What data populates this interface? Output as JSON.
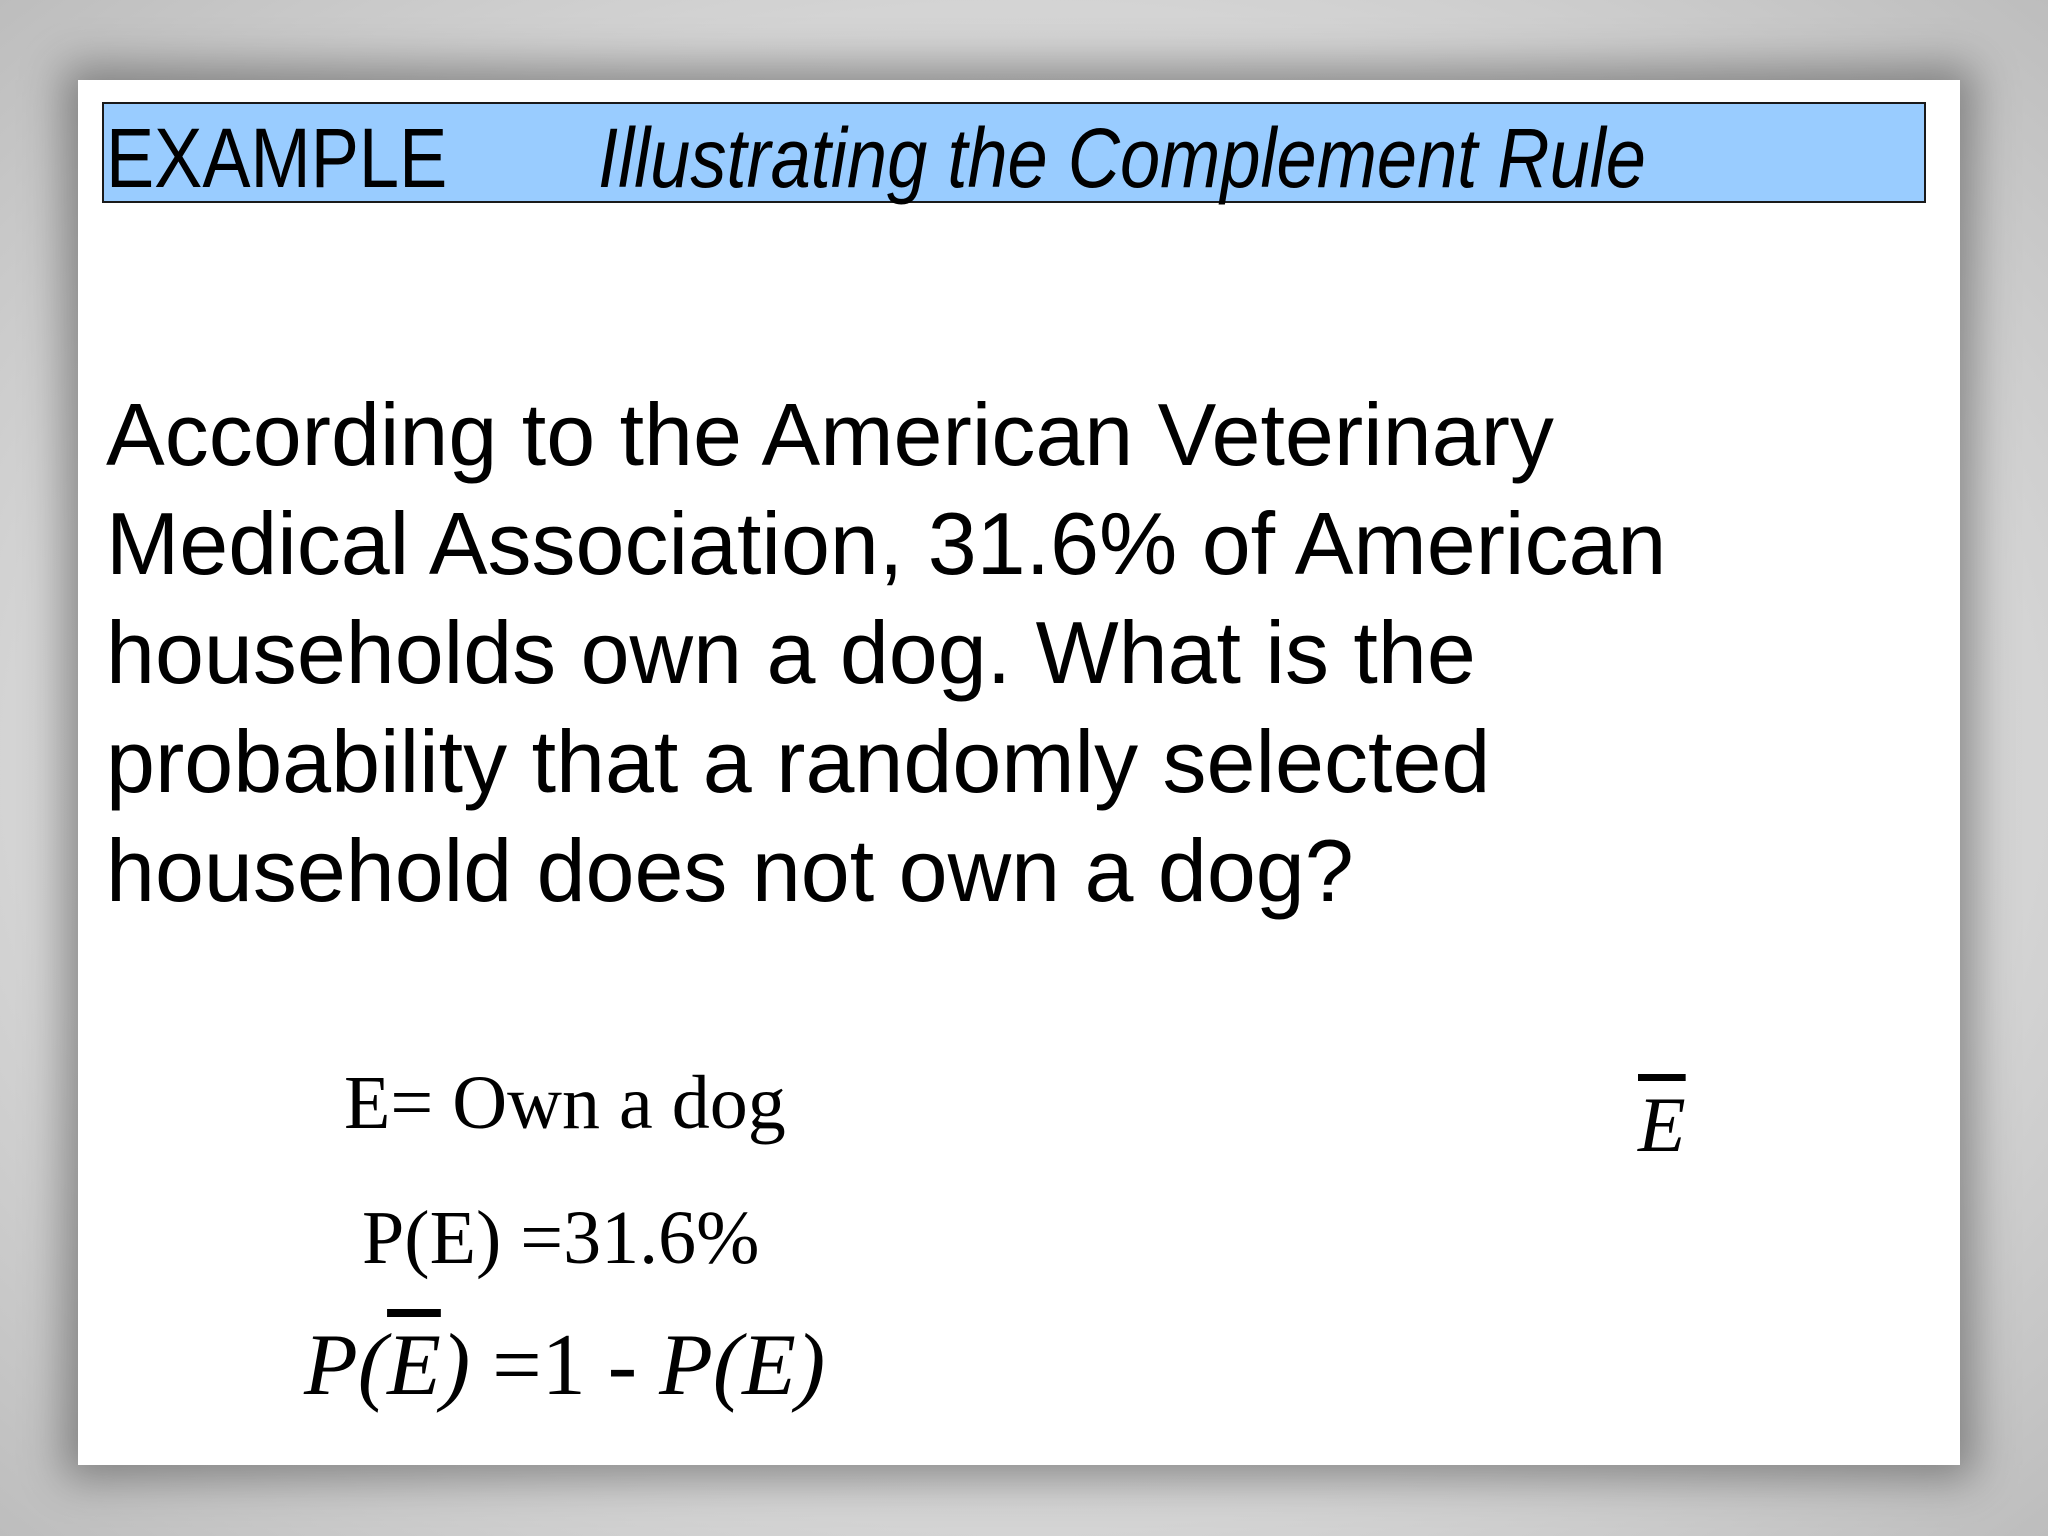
{
  "title": {
    "label": "EXAMPLE",
    "text": "Illustrating the Complement Rule",
    "background": "#99ccff"
  },
  "body": {
    "lines": [
      "According to the American Veterinary",
      "Medical Association, 31.6% of American",
      "households own a dog.  What is the",
      "probability that a randomly selected",
      "household does not own a dog?"
    ],
    "stray_symbol": "E"
  },
  "equations": {
    "definition": "E= Own a dog",
    "given": "P(E) =31.6%",
    "rule": {
      "lhs_p": "P(",
      "lhs_e": "E",
      "lhs_close": ")",
      "eq": " =1 - ",
      "rhs": "P(E)"
    }
  }
}
